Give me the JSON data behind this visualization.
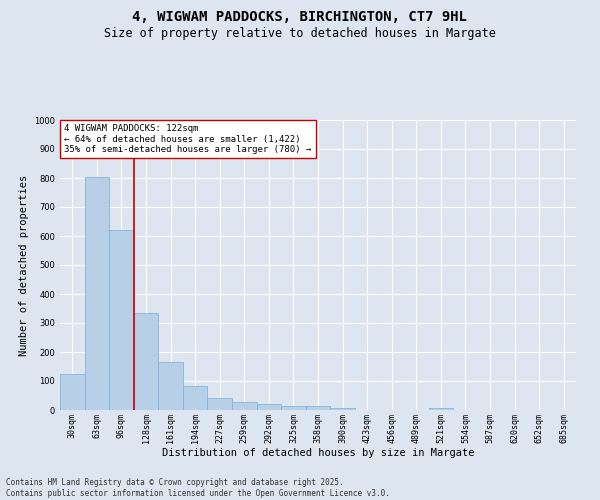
{
  "title": "4, WIGWAM PADDOCKS, BIRCHINGTON, CT7 9HL",
  "subtitle": "Size of property relative to detached houses in Margate",
  "xlabel": "Distribution of detached houses by size in Margate",
  "ylabel": "Number of detached properties",
  "categories": [
    "30sqm",
    "63sqm",
    "96sqm",
    "128sqm",
    "161sqm",
    "194sqm",
    "227sqm",
    "259sqm",
    "292sqm",
    "325sqm",
    "358sqm",
    "390sqm",
    "423sqm",
    "456sqm",
    "489sqm",
    "521sqm",
    "554sqm",
    "587sqm",
    "620sqm",
    "652sqm",
    "685sqm"
  ],
  "values": [
    123,
    803,
    621,
    335,
    165,
    82,
    40,
    27,
    22,
    15,
    13,
    7,
    0,
    0,
    0,
    8,
    0,
    0,
    0,
    0,
    0
  ],
  "bar_color": "#b8cfe8",
  "bar_edge_color": "#7aafd4",
  "vline_color": "#cc0000",
  "vline_x_idx": 2.5,
  "ylim": [
    0,
    1000
  ],
  "yticks": [
    0,
    100,
    200,
    300,
    400,
    500,
    600,
    700,
    800,
    900,
    1000
  ],
  "annotation_text": "4 WIGWAM PADDOCKS: 122sqm\n← 64% of detached houses are smaller (1,422)\n35% of semi-detached houses are larger (780) →",
  "annotation_box_facecolor": "#ffffff",
  "annotation_box_edgecolor": "#cc0000",
  "footer_line1": "Contains HM Land Registry data © Crown copyright and database right 2025.",
  "footer_line2": "Contains public sector information licensed under the Open Government Licence v3.0.",
  "background_color": "#dde5f0",
  "plot_bg_color": "#dde5f0",
  "grid_color": "#ffffff",
  "title_fontsize": 10,
  "subtitle_fontsize": 8.5,
  "xlabel_fontsize": 7.5,
  "ylabel_fontsize": 7.5,
  "tick_fontsize": 6,
  "annotation_fontsize": 6.5,
  "footer_fontsize": 5.5
}
